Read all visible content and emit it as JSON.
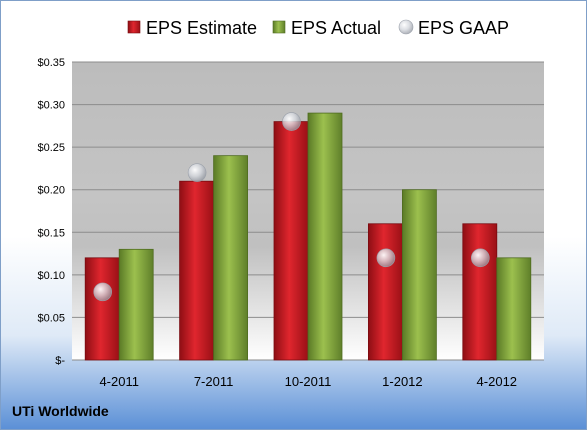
{
  "chart_data": {
    "type": "bar",
    "categories": [
      "4-2011",
      "7-2011",
      "10-2011",
      "1-2012",
      "4-2012"
    ],
    "series": [
      {
        "name": "EPS Estimate",
        "kind": "bar",
        "color": "#c8141e",
        "values": [
          0.12,
          0.21,
          0.28,
          0.16,
          0.16
        ]
      },
      {
        "name": "EPS Actual",
        "kind": "bar",
        "color": "#7fa33c",
        "values": [
          0.13,
          0.24,
          0.29,
          0.2,
          0.12
        ]
      },
      {
        "name": "EPS GAAP",
        "kind": "marker",
        "color": "#c9ccd4",
        "values": [
          0.08,
          0.22,
          0.28,
          0.12,
          0.12
        ]
      }
    ],
    "yticks": [
      "$-",
      "$0.05",
      "$0.10",
      "$0.15",
      "$0.20",
      "$0.25",
      "$0.30",
      "$0.35"
    ],
    "ylim": [
      0,
      0.35
    ],
    "grid": true,
    "legend_position": "top",
    "footer_label": "UTi Worldwide"
  }
}
